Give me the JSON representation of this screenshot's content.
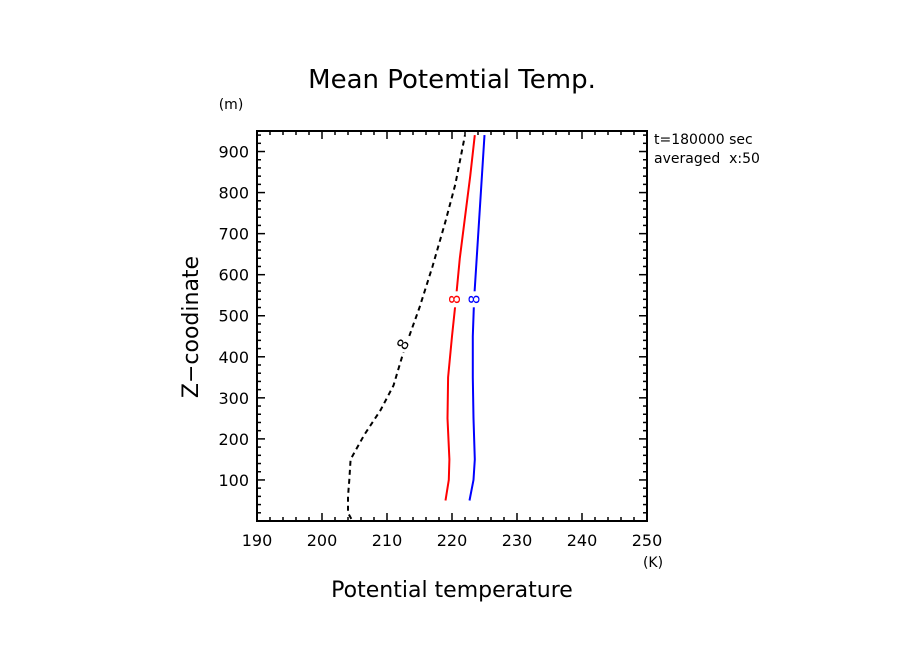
{
  "chart_data": {
    "type": "line",
    "title": "Mean Potemtial Temp.",
    "xlabel": "Potential temperature",
    "ylabel": "Z−coodinate",
    "x_unit": "(K)",
    "y_unit": "(m)",
    "xlim": [
      190,
      250
    ],
    "ylim": [
      0,
      950
    ],
    "x_ticks": [
      190,
      200,
      210,
      220,
      230,
      240,
      250
    ],
    "y_ticks": [
      100,
      200,
      300,
      400,
      500,
      600,
      700,
      800,
      900
    ],
    "x_tick_labels": [
      "190",
      "200",
      "210",
      "220",
      "230",
      "240",
      "250"
    ],
    "y_tick_labels": [
      "100",
      "200",
      "300",
      "400",
      "500",
      "600",
      "700",
      "800",
      "900"
    ],
    "annotations": [
      "t=180000 sec",
      "averaged  x:50"
    ],
    "series": [
      {
        "label": "8",
        "color": "#000000",
        "style": "dashed",
        "points": [
          [
            204.5,
            5
          ],
          [
            204,
            20
          ],
          [
            204,
            60
          ],
          [
            204.2,
            100
          ],
          [
            204.4,
            150
          ],
          [
            206.5,
            210
          ],
          [
            209,
            270
          ],
          [
            211,
            330
          ],
          [
            212.5,
            410
          ],
          [
            215,
            520
          ],
          [
            217,
            620
          ],
          [
            219,
            730
          ],
          [
            220.5,
            820
          ],
          [
            221.5,
            900
          ],
          [
            222,
            940
          ]
        ],
        "label_at": [
          212.5,
          430
        ]
      },
      {
        "label": "8",
        "color": "#ff0000",
        "style": "solid",
        "points": [
          [
            219,
            50
          ],
          [
            219.5,
            100
          ],
          [
            219.6,
            150
          ],
          [
            219.3,
            250
          ],
          [
            219.4,
            350
          ],
          [
            220,
            450
          ],
          [
            220.6,
            540
          ],
          [
            221.2,
            640
          ],
          [
            222,
            740
          ],
          [
            222.8,
            840
          ],
          [
            223.5,
            940
          ]
        ],
        "label_at": [
          220.5,
          540
        ]
      },
      {
        "label": "8",
        "color": "#0000ff",
        "style": "solid",
        "points": [
          [
            222.7,
            50
          ],
          [
            223.3,
            100
          ],
          [
            223.5,
            150
          ],
          [
            223.3,
            250
          ],
          [
            223.2,
            350
          ],
          [
            223.2,
            450
          ],
          [
            223.4,
            540
          ],
          [
            223.8,
            640
          ],
          [
            224.2,
            740
          ],
          [
            224.6,
            840
          ],
          [
            225,
            940
          ]
        ],
        "label_at": [
          223.5,
          540
        ]
      }
    ]
  }
}
